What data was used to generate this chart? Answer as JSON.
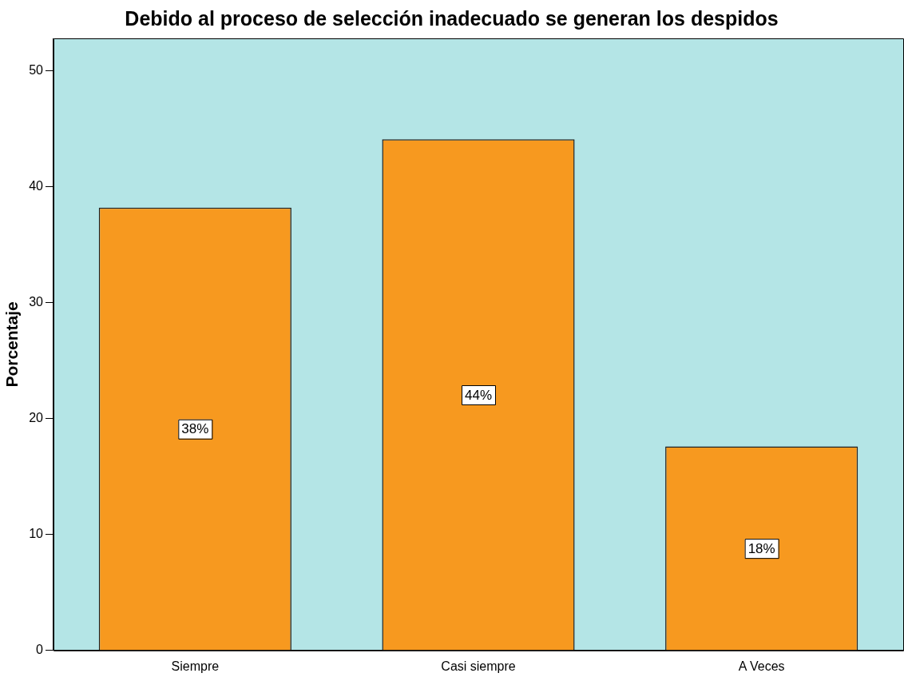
{
  "chart_data": {
    "type": "bar",
    "title": "Debido al proceso de selección inadecuado se generan los despidos",
    "ylabel": "Porcentaje",
    "categories": [
      "Siempre",
      "Casi siempre",
      "A Veces"
    ],
    "values": [
      38.2,
      44.1,
      17.6
    ],
    "value_labels": [
      "38%",
      "44%",
      "18%"
    ],
    "color": "#f7991f",
    "ylim": [
      0,
      52.8
    ],
    "yticks": [
      0,
      10,
      20,
      30,
      40,
      50
    ],
    "grid": false,
    "legend": false
  }
}
